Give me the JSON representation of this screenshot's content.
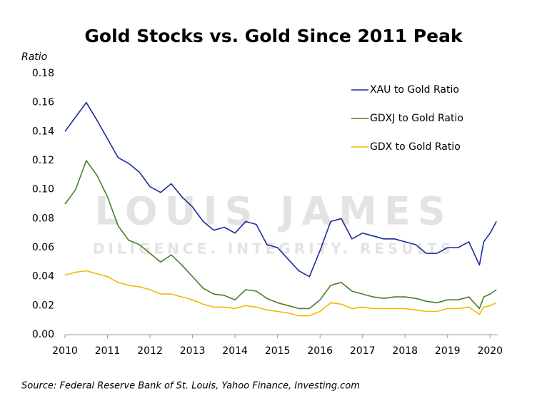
{
  "chart_data": {
    "type": "line",
    "title": "Gold Stocks vs. Gold Since 2011 Peak",
    "ylabel": "Ratio",
    "source": "Source: Federal Reserve Bank of St. Louis, Yahoo Finance, Investing.com",
    "watermark": [
      "LOUIS JAMES",
      "DILIGENCE. INTEGRITY. RESULTS"
    ],
    "legend": "upper right",
    "x": [
      2010,
      2010.25,
      2010.5,
      2010.75,
      2011,
      2011.25,
      2011.5,
      2011.75,
      2012,
      2012.25,
      2012.5,
      2012.75,
      2013,
      2013.25,
      2013.5,
      2013.75,
      2014,
      2014.25,
      2014.5,
      2014.75,
      2015,
      2015.25,
      2015.5,
      2015.75,
      2016,
      2016.25,
      2016.5,
      2016.75,
      2017,
      2017.25,
      2017.5,
      2017.75,
      2018,
      2018.25,
      2018.5,
      2018.75,
      2019,
      2019.25,
      2019.5,
      2019.75,
      2019.85,
      2020,
      2020.15
    ],
    "series": [
      {
        "name": "XAU to Gold Ratio",
        "color": "#1c2a9c",
        "values": [
          0.14,
          0.15,
          0.16,
          0.148,
          0.135,
          0.122,
          0.118,
          0.112,
          0.102,
          0.098,
          0.104,
          0.095,
          0.088,
          0.078,
          0.072,
          0.074,
          0.07,
          0.078,
          0.076,
          0.062,
          0.06,
          0.052,
          0.044,
          0.04,
          0.058,
          0.078,
          0.08,
          0.066,
          0.07,
          0.068,
          0.066,
          0.066,
          0.064,
          0.062,
          0.056,
          0.056,
          0.06,
          0.06,
          0.064,
          0.048,
          0.064,
          0.07,
          0.078
        ]
      },
      {
        "name": "GDXJ to Gold Ratio",
        "color": "#4b7d2c",
        "values": [
          0.09,
          0.1,
          0.12,
          0.11,
          0.095,
          0.075,
          0.065,
          0.062,
          0.056,
          0.05,
          0.055,
          0.048,
          0.04,
          0.032,
          0.028,
          0.027,
          0.024,
          0.031,
          0.03,
          0.025,
          0.022,
          0.02,
          0.018,
          0.018,
          0.024,
          0.034,
          0.036,
          0.03,
          0.028,
          0.026,
          0.025,
          0.026,
          0.026,
          0.025,
          0.023,
          0.022,
          0.024,
          0.024,
          0.026,
          0.018,
          0.026,
          0.028,
          0.031
        ]
      },
      {
        "name": "GDX to Gold Ratio",
        "color": "#f2b900",
        "values": [
          0.041,
          0.043,
          0.044,
          0.042,
          0.04,
          0.036,
          0.034,
          0.033,
          0.031,
          0.028,
          0.028,
          0.026,
          0.024,
          0.021,
          0.019,
          0.019,
          0.018,
          0.02,
          0.019,
          0.017,
          0.016,
          0.015,
          0.013,
          0.013,
          0.016,
          0.022,
          0.021,
          0.018,
          0.019,
          0.018,
          0.018,
          0.018,
          0.018,
          0.017,
          0.016,
          0.016,
          0.018,
          0.018,
          0.019,
          0.014,
          0.019,
          0.02,
          0.022
        ]
      }
    ],
    "xlim": [
      2010,
      2020.18
    ],
    "xticks": [
      2010,
      2011,
      2012,
      2013,
      2014,
      2015,
      2016,
      2017,
      2018,
      2019,
      2020
    ],
    "ylim": [
      0,
      0.18
    ],
    "yticks": [
      {
        "value": 0,
        "label": "0.00"
      },
      {
        "value": 0.02,
        "label": "0.02"
      },
      {
        "value": 0.04,
        "label": "0.04"
      },
      {
        "value": 0.06,
        "label": "0.06"
      },
      {
        "value": 0.08,
        "label": "0.08"
      },
      {
        "value": 0.1,
        "label": "0.10"
      },
      {
        "value": 0.12,
        "label": "0.12"
      },
      {
        "value": 0.14,
        "label": "0.14"
      },
      {
        "value": 0.16,
        "label": "0.16"
      },
      {
        "value": 0.18,
        "label": "0.18"
      }
    ],
    "grid": false
  }
}
